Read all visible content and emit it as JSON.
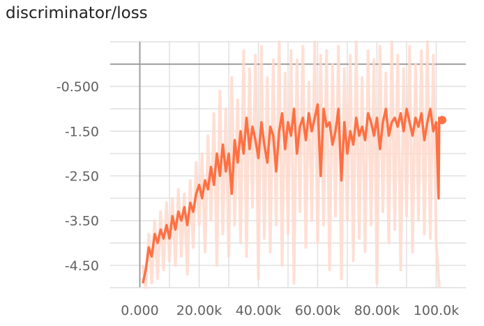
{
  "chart_data": {
    "type": "line",
    "title": "discriminator/loss",
    "xlabel": "",
    "ylabel": "",
    "xlim": [
      -10000,
      110000
    ],
    "ylim": [
      -5.0,
      0.5
    ],
    "grid": true,
    "x_tick_values": [
      0,
      20000,
      40000,
      60000,
      80000,
      100000
    ],
    "x_tick_labels": [
      "0.000",
      "20.00k",
      "40.00k",
      "60.00k",
      "80.00k",
      "100.0k"
    ],
    "y_tick_values": [
      -0.5,
      -1.5,
      -2.5,
      -3.5,
      -4.5
    ],
    "y_tick_labels": [
      "-0.500",
      "-1.50",
      "-2.50",
      "-3.50",
      "-4.50"
    ],
    "colors": {
      "smoothed": "#ff7043",
      "raw": "#ffd9cc",
      "axis": "#9e9e9e",
      "grid": "#e0e0e0"
    },
    "series": [
      {
        "role": "smoothed",
        "x": [
          1000,
          2000,
          3000,
          4000,
          5000,
          6000,
          7000,
          8000,
          9000,
          10000,
          11000,
          12000,
          13000,
          14000,
          15000,
          16000,
          17000,
          18000,
          19000,
          20000,
          21000,
          22000,
          23000,
          24000,
          25000,
          26000,
          27000,
          28000,
          29000,
          30000,
          31000,
          32000,
          33000,
          34000,
          35000,
          36000,
          37000,
          38000,
          39000,
          40000,
          41000,
          42000,
          43000,
          44000,
          45000,
          46000,
          47000,
          48000,
          49000,
          50000,
          51000,
          52000,
          53000,
          54000,
          55000,
          56000,
          57000,
          58000,
          59000,
          60000,
          61000,
          62000,
          63000,
          64000,
          65000,
          66000,
          67000,
          68000,
          69000,
          70000,
          71000,
          72000,
          73000,
          74000,
          75000,
          76000,
          77000,
          78000,
          79000,
          80000,
          81000,
          82000,
          83000,
          84000,
          85000,
          86000,
          87000,
          88000,
          89000,
          90000,
          91000,
          92000,
          93000,
          94000,
          95000,
          96000,
          97000,
          98000,
          99000,
          100000,
          100800,
          101000,
          101500,
          102000
        ],
        "y": [
          -4.9,
          -4.6,
          -4.1,
          -4.3,
          -3.8,
          -4.0,
          -3.7,
          -3.9,
          -3.6,
          -3.9,
          -3.4,
          -3.7,
          -3.3,
          -3.5,
          -3.2,
          -3.6,
          -3.1,
          -3.3,
          -2.9,
          -2.7,
          -3.0,
          -2.6,
          -2.8,
          -2.3,
          -2.7,
          -2.0,
          -2.5,
          -1.8,
          -2.4,
          -2.0,
          -2.9,
          -1.7,
          -2.2,
          -1.5,
          -2.0,
          -1.2,
          -1.9,
          -1.4,
          -1.7,
          -2.1,
          -1.3,
          -1.8,
          -2.2,
          -1.4,
          -1.6,
          -2.4,
          -1.5,
          -1.1,
          -1.9,
          -1.3,
          -1.6,
          -1.0,
          -2.0,
          -1.4,
          -1.2,
          -1.7,
          -1.1,
          -1.5,
          -1.2,
          -0.9,
          -2.5,
          -1.0,
          -1.4,
          -1.3,
          -1.8,
          -1.5,
          -1.0,
          -2.6,
          -1.3,
          -2.0,
          -1.5,
          -1.8,
          -1.2,
          -1.6,
          -1.4,
          -1.7,
          -1.1,
          -1.3,
          -1.6,
          -1.2,
          -1.9,
          -1.3,
          -1.0,
          -1.6,
          -1.3,
          -1.2,
          -1.4,
          -1.1,
          -1.5,
          -1.0,
          -1.3,
          -1.6,
          -1.2,
          -1.4,
          -1.1,
          -1.7,
          -1.3,
          -1.0,
          -1.5,
          -1.3,
          -3.0,
          -1.2,
          -1.3,
          -1.25
        ]
      },
      {
        "role": "raw",
        "x": [
          1000,
          2000,
          3000,
          4000,
          5000,
          6000,
          7000,
          8000,
          9000,
          10000,
          11000,
          12000,
          13000,
          14000,
          15000,
          16000,
          17000,
          18000,
          19000,
          20000,
          21000,
          22000,
          23000,
          24000,
          25000,
          26000,
          27000,
          28000,
          29000,
          30000,
          31000,
          32000,
          33000,
          34000,
          35000,
          36000,
          37000,
          38000,
          39000,
          40000,
          41000,
          42000,
          43000,
          44000,
          45000,
          46000,
          47000,
          48000,
          49000,
          50000,
          51000,
          52000,
          53000,
          54000,
          55000,
          56000,
          57000,
          58000,
          59000,
          60000,
          61000,
          62000,
          63000,
          64000,
          65000,
          66000,
          67000,
          68000,
          69000,
          70000,
          71000,
          72000,
          73000,
          74000,
          75000,
          76000,
          77000,
          78000,
          79000,
          80000,
          81000,
          82000,
          83000,
          84000,
          85000,
          86000,
          87000,
          88000,
          89000,
          90000,
          91000,
          92000,
          93000,
          94000,
          95000,
          96000,
          97000,
          98000,
          99000,
          100000,
          101000
        ],
        "y": [
          -4.5,
          -5.0,
          -3.8,
          -4.9,
          -3.5,
          -4.8,
          -3.3,
          -4.6,
          -3.1,
          -4.4,
          -3.0,
          -4.5,
          -2.8,
          -4.3,
          -2.9,
          -4.7,
          -2.6,
          -4.1,
          -2.2,
          -3.6,
          -2.0,
          -4.2,
          -1.6,
          -3.5,
          -1.1,
          -4.5,
          -0.6,
          -3.8,
          -1.0,
          -4.3,
          -0.3,
          -3.6,
          -0.8,
          -4.0,
          0.3,
          -4.3,
          -0.1,
          -3.2,
          0.2,
          -4.8,
          0.4,
          -3.9,
          -0.3,
          -4.2,
          0.1,
          -3.6,
          0.5,
          -4.5,
          -0.2,
          -3.8,
          0.3,
          -4.9,
          0.1,
          -3.3,
          0.4,
          -4.1,
          -0.4,
          -3.5,
          0.5,
          -4.0,
          0.2,
          -3.6,
          0.3,
          -4.6,
          0.0,
          -3.4,
          0.4,
          -4.8,
          -0.1,
          -3.5,
          0.2,
          -4.4,
          0.5,
          -3.9,
          -0.3,
          -4.2,
          0.3,
          -3.6,
          0.1,
          -4.9,
          0.4,
          -3.3,
          -0.2,
          -4.0,
          0.5,
          -3.7,
          0.2,
          -4.6,
          -0.1,
          -3.4,
          0.4,
          -4.2,
          0.0,
          -3.5,
          0.3,
          -3.8,
          0.5,
          -3.9,
          0.2,
          -4.0,
          -5.0
        ]
      }
    ]
  }
}
